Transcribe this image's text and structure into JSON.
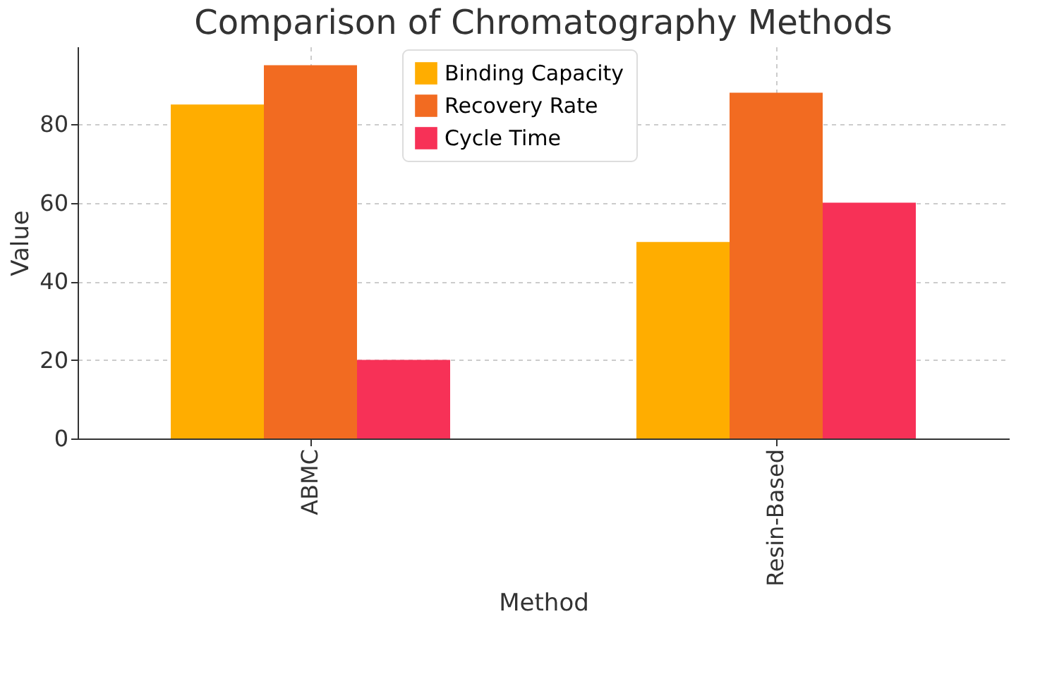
{
  "chart_data": {
    "type": "bar",
    "title": "Comparison of Chromatography Methods",
    "xlabel": "Method",
    "ylabel": "Value",
    "categories": [
      "ABMC",
      "Resin-Based"
    ],
    "series": [
      {
        "name": "Binding Capacity",
        "color": "#ffad00",
        "values": [
          85,
          50
        ]
      },
      {
        "name": "Recovery Rate",
        "color": "#f26b21",
        "values": [
          95,
          88
        ]
      },
      {
        "name": "Cycle Time",
        "color": "#f73157",
        "values": [
          20,
          60
        ]
      }
    ],
    "ylim": [
      0,
      99.75
    ],
    "yticks": [
      0,
      20,
      40,
      60,
      80
    ],
    "grid": true,
    "legend": "top"
  }
}
